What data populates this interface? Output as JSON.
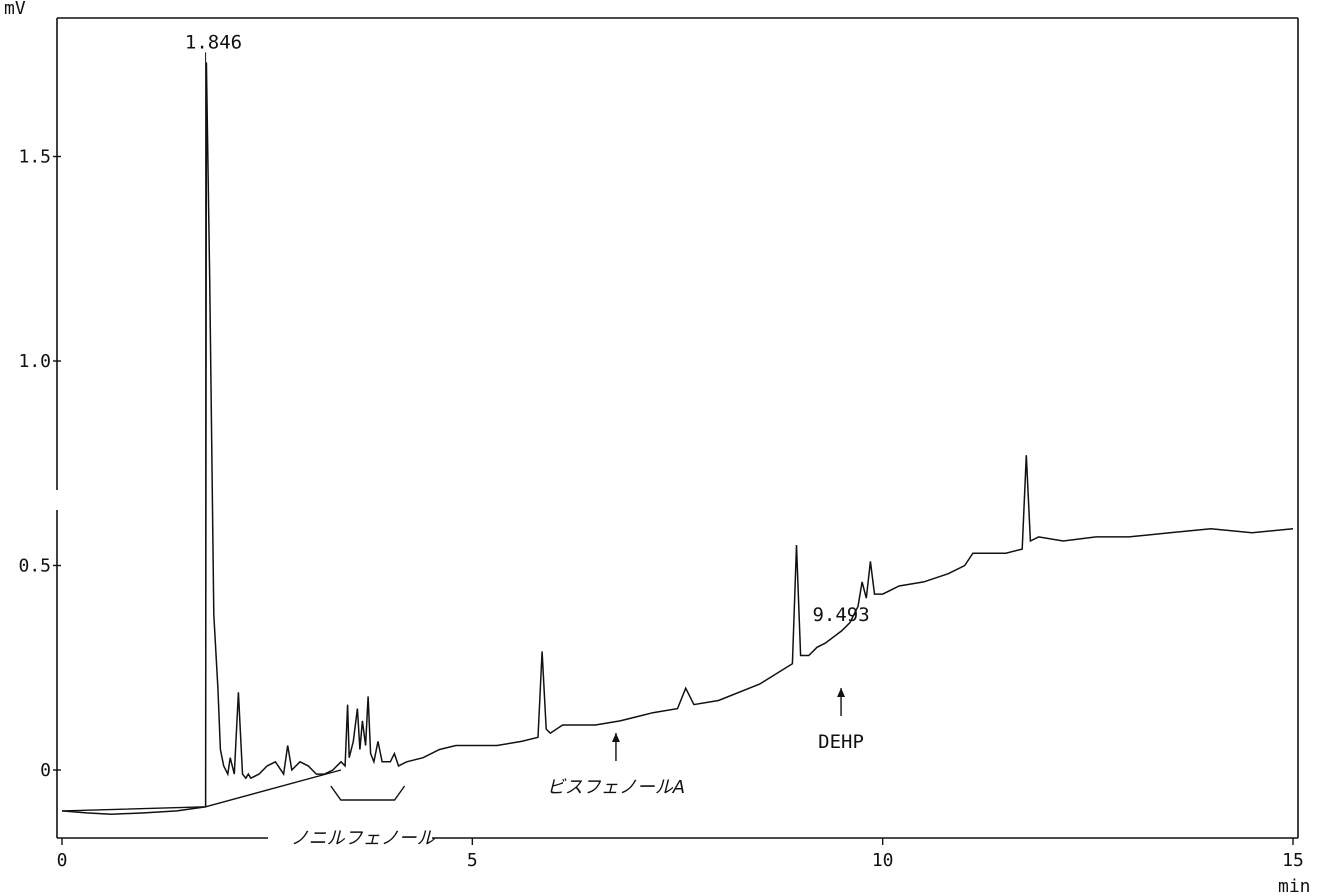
{
  "chart_data": {
    "type": "line",
    "ylabel": "mV",
    "xlabel": "min",
    "xlim": [
      0,
      15
    ],
    "ylim": [
      -0.12,
      1.82
    ],
    "x_ticks": [
      {
        "value": 0,
        "label": "0"
      },
      {
        "value": 5,
        "label": "5"
      },
      {
        "value": 10,
        "label": "10"
      },
      {
        "value": 15,
        "label": "15"
      }
    ],
    "y_ticks": [
      {
        "value": 0,
        "label": "0"
      },
      {
        "value": 0.5,
        "label": "0.5"
      },
      {
        "value": 1.0,
        "label": "1.0"
      },
      {
        "value": 1.5,
        "label": "1.5"
      }
    ],
    "grid": false,
    "baseline": {
      "x": [
        0,
        1.75,
        3.4
      ],
      "y": [
        -0.1,
        -0.09,
        0.0
      ]
    },
    "series": [
      {
        "x": [
          0,
          0.3,
          0.6,
          1.0,
          1.4,
          1.75,
          1.76,
          1.8,
          1.85,
          1.9,
          1.93,
          1.97,
          2.02,
          2.05,
          2.1,
          2.15,
          2.2,
          2.24,
          2.27,
          2.3,
          2.4,
          2.5,
          2.6,
          2.7,
          2.75,
          2.8,
          2.9,
          3.0,
          3.1,
          3.2,
          3.3,
          3.4,
          3.45,
          3.48,
          3.5,
          3.55,
          3.6,
          3.63,
          3.66,
          3.7,
          3.73,
          3.76,
          3.8,
          3.85,
          3.9,
          3.95,
          4.0,
          4.05,
          4.1,
          4.2,
          4.4,
          4.6,
          4.8,
          5.0,
          5.3,
          5.6,
          5.8,
          5.85,
          5.9,
          5.95,
          6.1,
          6.5,
          6.8,
          7.2,
          7.5,
          7.6,
          7.7,
          8.0,
          8.5,
          8.9,
          8.95,
          9.0,
          9.1,
          9.2,
          9.3,
          9.5,
          9.6,
          9.7,
          9.75,
          9.8,
          9.85,
          9.9,
          10.0,
          10.2,
          10.5,
          10.8,
          11.0,
          11.1,
          11.5,
          11.7,
          11.75,
          11.8,
          11.9,
          12.2,
          12.6,
          13.0,
          13.5,
          14.0,
          14.5,
          15.0
        ],
        "y": [
          -0.1,
          -0.105,
          -0.108,
          -0.105,
          -0.1,
          -0.09,
          1.73,
          1.2,
          0.38,
          0.2,
          0.05,
          0.01,
          -0.01,
          0.03,
          -0.01,
          0.19,
          -0.01,
          -0.02,
          -0.01,
          -0.02,
          -0.01,
          0.01,
          0.02,
          -0.01,
          0.06,
          0.0,
          0.02,
          0.01,
          -0.01,
          -0.01,
          0.0,
          0.02,
          0.01,
          0.16,
          0.03,
          0.07,
          0.15,
          0.05,
          0.12,
          0.06,
          0.18,
          0.04,
          0.02,
          0.07,
          0.02,
          0.02,
          0.02,
          0.04,
          0.01,
          0.02,
          0.03,
          0.05,
          0.06,
          0.06,
          0.06,
          0.07,
          0.08,
          0.29,
          0.1,
          0.09,
          0.11,
          0.11,
          0.12,
          0.14,
          0.15,
          0.2,
          0.16,
          0.17,
          0.21,
          0.26,
          0.55,
          0.28,
          0.28,
          0.3,
          0.31,
          0.34,
          0.36,
          0.4,
          0.46,
          0.42,
          0.51,
          0.43,
          0.43,
          0.45,
          0.46,
          0.48,
          0.5,
          0.53,
          0.53,
          0.54,
          0.77,
          0.56,
          0.57,
          0.56,
          0.57,
          0.57,
          0.58,
          0.59,
          0.58,
          0.59
        ]
      }
    ],
    "annotations": [
      {
        "label": "1.846",
        "x": 1.846,
        "y": 1.75,
        "kind": "peak-label"
      },
      {
        "label": "9.493",
        "x": 9.493,
        "y": 0.35,
        "kind": "peak-label"
      },
      {
        "label": "DEHP",
        "x": 9.493,
        "y": 0.22,
        "kind": "arrow-label"
      },
      {
        "label": "ビスフェノールA",
        "x": 6.75,
        "y": 0.11,
        "kind": "arrow-label"
      },
      {
        "label": "ノニルフェノール",
        "x_start": 3.3,
        "x_end": 4.15,
        "kind": "bracket-label"
      }
    ]
  }
}
